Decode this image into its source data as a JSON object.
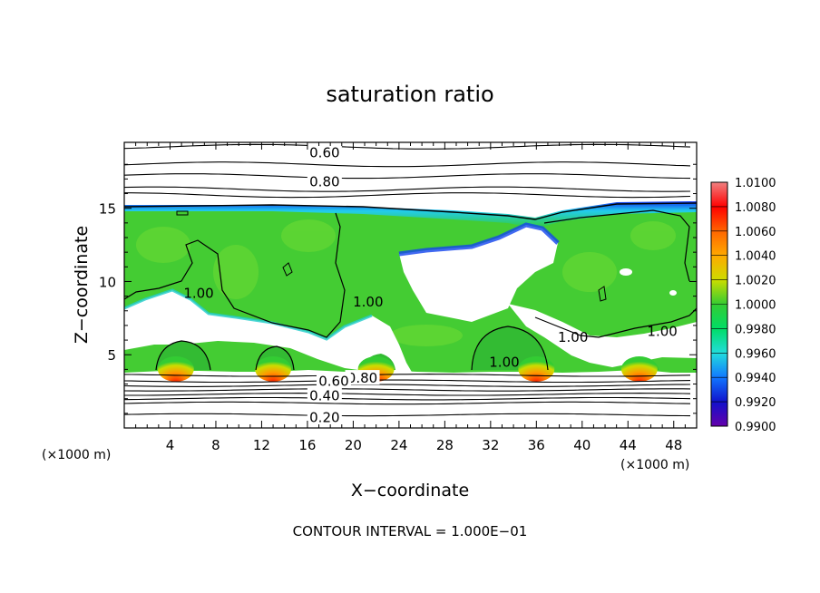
{
  "chart_data": {
    "type": "heatmap",
    "title": "saturation ratio",
    "xlabel": "X−coordinate",
    "ylabel": "Z−coordinate",
    "x_unit_label": "(×1000 m)",
    "z_unit_label": "(×1000 m)",
    "footer": "CONTOUR INTERVAL = 1.000E−01",
    "xlim": [
      0,
      50
    ],
    "ylim": [
      0,
      19.5
    ],
    "xticks": [
      "4",
      "8",
      "12",
      "16",
      "20",
      "24",
      "28",
      "32",
      "36",
      "40",
      "44",
      "48"
    ],
    "yticks": [
      "5",
      "10",
      "15"
    ],
    "colorbar": {
      "labels": [
        "1.0100",
        "1.0080",
        "1.0060",
        "1.0040",
        "1.0020",
        "1.0000",
        "0.9980",
        "0.9960",
        "0.9940",
        "0.9920",
        "0.9900"
      ],
      "colors": [
        "#f08080",
        "#ff0000",
        "#ff6600",
        "#ffaa00",
        "#ccdd00",
        "#33cc33",
        "#00dd66",
        "#22dddd",
        "#1177ff",
        "#1111cc",
        "#6600aa"
      ]
    },
    "contour_labels": [
      {
        "text": "0.60",
        "x": 17.5,
        "z": 18.8
      },
      {
        "text": "0.80",
        "x": 17.5,
        "z": 16.8
      },
      {
        "text": "1.00",
        "x": 6.5,
        "z": 9.2
      },
      {
        "text": "1.00",
        "x": 21.3,
        "z": 8.6
      },
      {
        "text": "1.00",
        "x": 39.2,
        "z": 6.2
      },
      {
        "text": "1.00",
        "x": 47.0,
        "z": 6.6
      },
      {
        "text": "1.00",
        "x": 33.2,
        "z": 4.5
      },
      {
        "text": "0.80",
        "x": 20.8,
        "z": 3.4
      },
      {
        "text": "0.60",
        "x": 18.3,
        "z": 3.2
      },
      {
        "text": "0.40",
        "x": 17.5,
        "z": 2.2
      },
      {
        "text": "0.20",
        "x": 17.5,
        "z": 0.7
      }
    ],
    "background_contours_z": [
      19.2,
      18.0,
      17.2,
      16.3,
      15.9,
      3.6,
      3.2,
      2.9,
      2.6,
      2.3,
      2.0,
      1.7,
      0.9
    ],
    "supersaturation_maxima": [
      {
        "x": 4.5,
        "z": 3.9
      },
      {
        "x": 13.0,
        "z": 3.9
      },
      {
        "x": 22.0,
        "z": 3.9
      },
      {
        "x": 36.0,
        "z": 3.9
      },
      {
        "x": 45.0,
        "z": 3.9
      }
    ]
  }
}
